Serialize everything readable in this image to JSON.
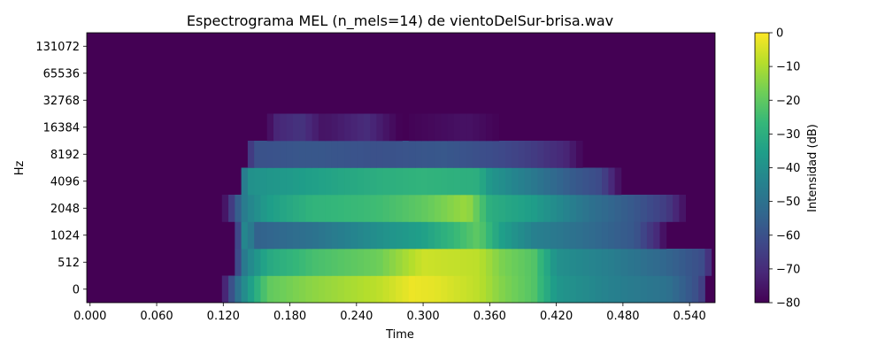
{
  "chart_data": {
    "type": "heatmap",
    "title": "Espectrograma MEL (n_mels=14) de vientoDelSur-brisa.wav",
    "xlabel": "Time",
    "ylabel": "Hz",
    "xlim": [
      -0.003,
      0.563
    ],
    "x_ticks": [
      "0.000",
      "0.060",
      "0.120",
      "0.180",
      "0.240",
      "0.300",
      "0.360",
      "0.420",
      "0.480",
      "0.540"
    ],
    "y_ticks": [
      "0",
      "512",
      "1024",
      "2048",
      "4096",
      "8192",
      "16384",
      "32768",
      "65536",
      "131072"
    ],
    "colorbar": {
      "label": "Intensidad (dB)",
      "range": [
        -80,
        0
      ],
      "ticks": [
        "0",
        "−10",
        "−20",
        "−30",
        "−40",
        "−50",
        "−60",
        "−70",
        "−80"
      ],
      "colormap": "viridis"
    },
    "band_profiles": [
      {
        "band": "0",
        "values": [
          [
            0.12,
            -75
          ],
          [
            0.13,
            -55
          ],
          [
            0.14,
            -40
          ],
          [
            0.16,
            -20
          ],
          [
            0.2,
            -14
          ],
          [
            0.26,
            -8
          ],
          [
            0.29,
            -2
          ],
          [
            0.31,
            -3
          ],
          [
            0.35,
            -8
          ],
          [
            0.37,
            -15
          ],
          [
            0.4,
            -22
          ],
          [
            0.42,
            -38
          ],
          [
            0.47,
            -45
          ],
          [
            0.52,
            -50
          ],
          [
            0.55,
            -62
          ],
          [
            0.556,
            -80
          ]
        ]
      },
      {
        "band": "512",
        "values": [
          [
            0.13,
            -70
          ],
          [
            0.14,
            -45
          ],
          [
            0.16,
            -32
          ],
          [
            0.2,
            -24
          ],
          [
            0.26,
            -18
          ],
          [
            0.3,
            -6
          ],
          [
            0.35,
            -8
          ],
          [
            0.37,
            -16
          ],
          [
            0.4,
            -22
          ],
          [
            0.42,
            -40
          ],
          [
            0.47,
            -46
          ],
          [
            0.52,
            -54
          ],
          [
            0.555,
            -62
          ],
          [
            0.56,
            -80
          ]
        ]
      },
      {
        "band": "1024",
        "values": [
          [
            0.13,
            -74
          ],
          [
            0.14,
            -40
          ],
          [
            0.15,
            -55
          ],
          [
            0.2,
            -50
          ],
          [
            0.26,
            -40
          ],
          [
            0.3,
            -35
          ],
          [
            0.35,
            -20
          ],
          [
            0.37,
            -35
          ],
          [
            0.4,
            -45
          ],
          [
            0.45,
            -52
          ],
          [
            0.49,
            -58
          ],
          [
            0.51,
            -70
          ],
          [
            0.52,
            -80
          ]
        ]
      },
      {
        "band": "2048",
        "values": [
          [
            0.12,
            -78
          ],
          [
            0.14,
            -45
          ],
          [
            0.16,
            -36
          ],
          [
            0.2,
            -28
          ],
          [
            0.26,
            -25
          ],
          [
            0.3,
            -20
          ],
          [
            0.34,
            -12
          ],
          [
            0.36,
            -30
          ],
          [
            0.4,
            -36
          ],
          [
            0.45,
            -50
          ],
          [
            0.49,
            -58
          ],
          [
            0.52,
            -66
          ],
          [
            0.54,
            -80
          ]
        ]
      },
      {
        "band": "4096",
        "values": [
          [
            0.135,
            -75
          ],
          [
            0.14,
            -40
          ],
          [
            0.2,
            -35
          ],
          [
            0.26,
            -30
          ],
          [
            0.3,
            -28
          ],
          [
            0.35,
            -30
          ],
          [
            0.36,
            -38
          ],
          [
            0.4,
            -48
          ],
          [
            0.43,
            -56
          ],
          [
            0.46,
            -62
          ],
          [
            0.48,
            -80
          ]
        ]
      },
      {
        "band": "8192",
        "values": [
          [
            0.14,
            -72
          ],
          [
            0.15,
            -60
          ],
          [
            0.2,
            -58
          ],
          [
            0.26,
            -60
          ],
          [
            0.32,
            -58
          ],
          [
            0.37,
            -62
          ],
          [
            0.4,
            -66
          ],
          [
            0.43,
            -72
          ],
          [
            0.445,
            -80
          ]
        ]
      },
      {
        "band": "16384",
        "values": [
          [
            0.16,
            -80
          ],
          [
            0.165,
            -72
          ],
          [
            0.19,
            -68
          ],
          [
            0.21,
            -76
          ],
          [
            0.25,
            -70
          ],
          [
            0.28,
            -80
          ],
          [
            0.34,
            -76
          ],
          [
            0.37,
            -80
          ]
        ]
      },
      {
        "band": "32768",
        "values": []
      },
      {
        "band": "65536",
        "values": []
      },
      {
        "band": "131072",
        "values": []
      }
    ]
  }
}
